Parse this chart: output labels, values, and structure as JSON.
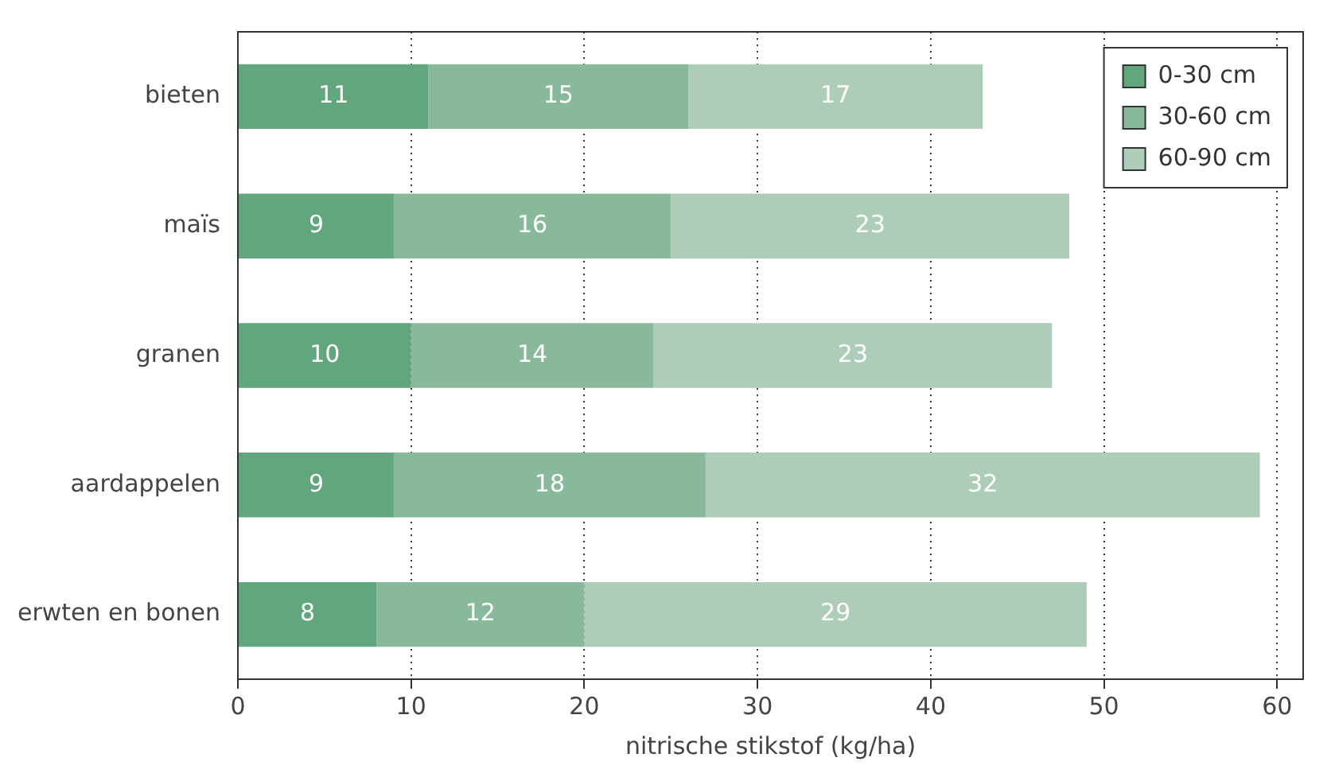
{
  "chart_data": {
    "type": "bar",
    "orientation": "horizontal",
    "stacked": true,
    "xlabel": "nitrische stikstof (kg/ha)",
    "categories": [
      "bieten",
      "maïs",
      "granen",
      "aardappelen",
      "erwten en bonen"
    ],
    "series": [
      {
        "name": "0-30 cm",
        "color": "#62a67d",
        "values": [
          11,
          9,
          10,
          9,
          8
        ]
      },
      {
        "name": "30-60 cm",
        "color": "#89b99b",
        "values": [
          15,
          16,
          14,
          18,
          12
        ]
      },
      {
        "name": "60-90 cm",
        "color": "#aecdb8",
        "values": [
          17,
          23,
          23,
          32,
          29
        ]
      }
    ],
    "xlim": [
      0,
      61.5
    ],
    "xticks": [
      0,
      10,
      20,
      30,
      40,
      50,
      60
    ],
    "grid": "x",
    "legend": "top right",
    "data_labels": true
  }
}
